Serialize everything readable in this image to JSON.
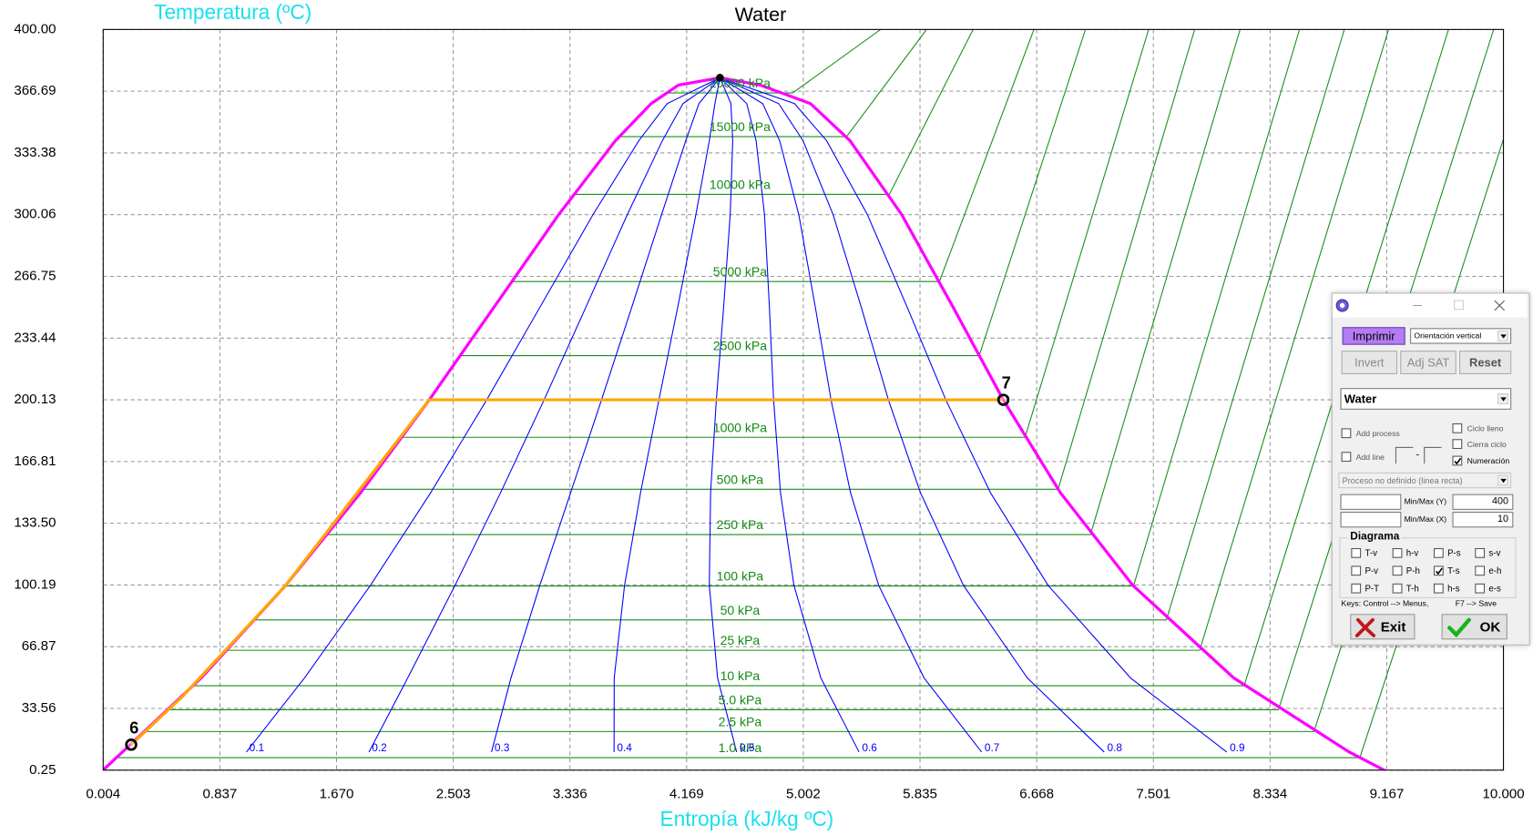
{
  "chart_data": {
    "type": "line",
    "title": "Water",
    "xlabel": "Entropía (kJ/kg ºC)",
    "ylabel": "Temperatura (ºC)",
    "xlim": [
      0.004,
      10
    ],
    "ylim": [
      0.25,
      400
    ],
    "xticks": [
      0.004,
      0.837,
      {
        "value": 1.67,
        "label": "1.670"
      },
      2.503,
      3.336,
      4.169,
      5.002,
      5.835,
      6.668,
      7.501,
      8.334,
      9.167,
      {
        "value": 10,
        "label": "10.000"
      }
    ],
    "yticks": [
      0.25,
      33.56,
      66.87,
      100.19,
      {
        "value": 133.5,
        "label": "133.50"
      },
      166.81,
      200.13,
      233.44,
      266.75,
      300.06,
      333.38,
      366.69,
      {
        "value": 400,
        "label": "400.00"
      }
    ],
    "grid": true,
    "saturation": {
      "color": "#ff00ff",
      "x": [
        0,
        0.704,
        1.307,
        1.842,
        2.331,
        2.793,
        3.255,
        3.661,
        3.916,
        4.111,
        4.407,
        4.694,
        5.053,
        5.335,
        5.705,
        6.072,
        6.43,
        6.837,
        7.354,
        8.075,
        8.9,
        9.155
      ],
      "y": [
        0.01,
        50,
        100,
        150,
        200,
        250,
        300,
        340,
        360,
        370,
        373.95,
        370,
        360,
        340,
        300,
        250,
        200,
        150,
        100,
        50,
        10,
        0.01
      ]
    },
    "critical_point": {
      "x": 4.407,
      "y": 373.95,
      "color": "#000000"
    },
    "quality_lines": {
      "color": "#0000ff",
      "y": [
        10,
        50,
        100,
        150,
        200,
        250,
        300,
        340,
        360,
        373.95
      ],
      "lines": [
        {
          "name": "0.1",
          "x": [
            1.026,
            1.441,
            1.912,
            2.342,
            2.741,
            3.121,
            3.5,
            3.828,
            4.03,
            4.407
          ]
        },
        {
          "name": "0.2",
          "x": [
            1.901,
            2.178,
            2.516,
            2.841,
            3.151,
            3.449,
            3.745,
            3.996,
            4.143,
            4.407
          ]
        },
        {
          "name": "0.3",
          "x": [
            2.776,
            2.915,
            3.121,
            3.341,
            3.561,
            3.777,
            3.99,
            4.163,
            4.257,
            4.407
          ]
        },
        {
          "name": "0.4",
          "x": [
            3.651,
            3.652,
            3.726,
            3.84,
            3.971,
            4.105,
            4.235,
            4.331,
            4.371,
            4.407
          ]
        },
        {
          "name": "0.5",
          "x": [
            4.526,
            4.39,
            4.331,
            4.34,
            4.381,
            4.433,
            4.48,
            4.498,
            4.485,
            4.407
          ]
        },
        {
          "name": "0.6",
          "x": [
            5.4,
            5.127,
            4.935,
            4.839,
            4.79,
            4.76,
            4.725,
            4.665,
            4.598,
            4.407
          ]
        },
        {
          "name": "0.7",
          "x": [
            6.275,
            5.864,
            5.54,
            5.339,
            5.2,
            5.088,
            4.97,
            4.833,
            4.712,
            4.407
          ]
        },
        {
          "name": "0.8",
          "x": [
            7.15,
            6.601,
            6.145,
            5.838,
            5.61,
            5.416,
            5.215,
            5.0,
            4.826,
            4.407
          ]
        },
        {
          "name": "0.9",
          "x": [
            8.025,
            7.338,
            6.749,
            6.338,
            6.02,
            5.744,
            5.46,
            5.168,
            4.939,
            4.407
          ]
        }
      ]
    },
    "isobars": {
      "color": "#1a8c1a",
      "lines": [
        {
          "name": "20000 kPa",
          "x": [
            4.0146,
            4.926,
            5.554
          ],
          "y": [
            365.75,
            365.75,
            400
          ]
        },
        {
          "name": "15000 kPa",
          "x": [
            3.6848,
            5.3108,
            5.8819
          ],
          "y": [
            342.16,
            342.16,
            400
          ]
        },
        {
          "name": "10000 kPa",
          "x": [
            3.3603,
            5.6159,
            6.2141
          ],
          "y": [
            311.0,
            311.0,
            400
          ]
        },
        {
          "name": "5000 kPa",
          "x": [
            2.921,
            5.9737,
            6.6483
          ],
          "y": [
            263.94,
            263.94,
            400
          ]
        },
        {
          "name": "2500 kPa",
          "x": [
            2.5543,
            6.2574,
            7.0162
          ],
          "y": [
            223.95,
            223.95,
            400
          ]
        },
        {
          "name": "1000 kPa",
          "x": [
            2.1381,
            6.585,
            7.467
          ],
          "y": [
            179.88,
            179.88,
            400
          ]
        },
        {
          "name": "500 kPa",
          "x": [
            1.8604,
            6.8207,
            7.7956
          ],
          "y": [
            151.83,
            151.83,
            400
          ]
        },
        {
          "name": "250 kPa",
          "x": [
            1.6072,
            7.052,
            8.12
          ],
          "y": [
            127.41,
            127.41,
            400
          ]
        },
        {
          "name": "100 kPa",
          "x": [
            1.3028,
            7.3589,
            8.5441
          ],
          "y": [
            99.61,
            99.61,
            400
          ]
        },
        {
          "name": "50 kPa",
          "x": [
            1.091,
            7.5939,
            8.8642
          ],
          "y": [
            81.32,
            81.32,
            400
          ]
        },
        {
          "name": "25 kPa",
          "x": [
            0.8932,
            7.8314,
            9.18
          ],
          "y": [
            64.96,
            64.96,
            400
          ]
        },
        {
          "name": "10 kPa",
          "x": [
            0.6492,
            8.1488,
            9.6078
          ],
          "y": [
            45.81,
            45.81,
            400
          ]
        },
        {
          "name": "5.0 kPa",
          "x": [
            0.4762,
            8.3938,
            9.93
          ],
          "y": [
            32.87,
            32.87,
            400
          ]
        },
        {
          "name": "2.5 kPa",
          "x": [
            0.3119,
            8.6475,
            10.25
          ],
          "y": [
            21.08,
            21.08,
            400
          ]
        },
        {
          "name": "1.0 kPa",
          "x": [
            0.1059,
            8.9749,
            10.67
          ],
          "y": [
            6.97,
            6.97,
            400
          ]
        }
      ]
    },
    "process": {
      "color": "#ffa500",
      "x": [
        0.204,
        0.57,
        1.307,
        2.331,
        6.43
      ],
      "y": [
        14,
        40,
        100,
        200.13,
        200.13
      ]
    },
    "points": [
      {
        "label": "6",
        "x": 0.204,
        "y": 14
      },
      {
        "label": "7",
        "x": 6.43,
        "y": 200.13
      }
    ]
  },
  "panel": {
    "print_button": "Imprimir",
    "orientation": "Orientación vertical",
    "buttons": [
      "Invert",
      "Adj SAT",
      "Reset"
    ],
    "substance": "Water",
    "add_process": "Add process",
    "add_line": "Add line",
    "line_separator": "-",
    "ciclo_lleno": "Ciclo lleno",
    "cierra_ciclo": "Cierra ciclo",
    "numeracion": {
      "label": "Numeración",
      "checked": true
    },
    "process_type": "Proceso no definido (linea recta)",
    "min_max_y": {
      "label": "Min/Max (Y)",
      "value": 400
    },
    "min_max_x": {
      "label": "Min/Max (X)",
      "value": 10
    },
    "diagram_title": "Diagrama",
    "diagrams": [
      {
        "label": "T-v"
      },
      {
        "label": "h-v"
      },
      {
        "label": "P-s"
      },
      {
        "label": "s-v"
      },
      {
        "label": "P-v"
      },
      {
        "label": "P-h"
      },
      {
        "label": "T-s",
        "checked": true
      },
      {
        "label": "e-h"
      },
      {
        "label": "P-T"
      },
      {
        "label": "T-h"
      },
      {
        "label": "h-s"
      },
      {
        "label": "e-s"
      }
    ],
    "keys": "Keys: Control --> Menus,",
    "save_key": "F7 --> Save",
    "exit": "Exit",
    "ok": "OK"
  }
}
